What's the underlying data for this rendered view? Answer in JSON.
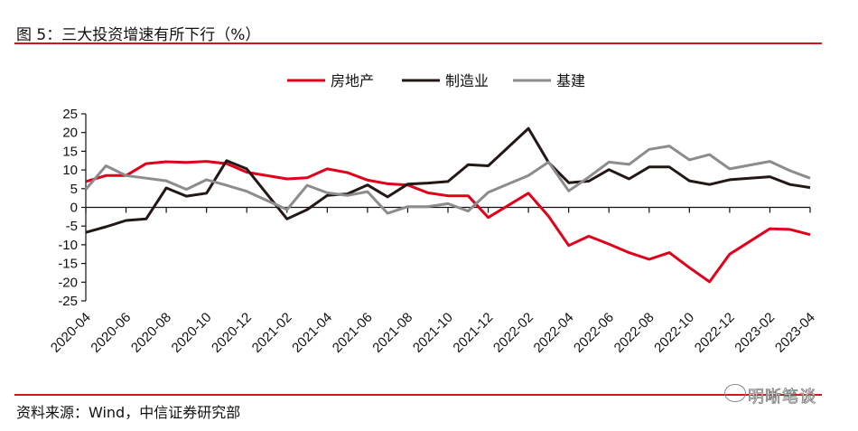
{
  "title": "图 5：三大投资增速有所下行（%）",
  "source": "资料来源：Wind，中信证券研究部",
  "watermark": "明晰笔谈",
  "chart_data": {
    "type": "line",
    "title": "三大投资增速有所下行（%）",
    "xlabel": "",
    "ylabel": "%",
    "ylim": [
      -25,
      25
    ],
    "yticks": [
      "25",
      "20",
      "15",
      "10",
      "5",
      "0",
      "-5",
      "-10",
      "-15",
      "-20",
      "-25"
    ],
    "xtick_labels": [
      "2020-04",
      "2020-06",
      "2020-08",
      "2020-10",
      "2020-12",
      "2021-02",
      "2021-04",
      "2021-06",
      "2021-08",
      "2021-10",
      "2021-12",
      "2022-02",
      "2022-04",
      "2022-06",
      "2022-08",
      "2022-10",
      "2022-12",
      "2023-02",
      "2023-04"
    ],
    "legend_position": "top-center",
    "x": [
      "2020-04",
      "2020-05",
      "2020-06",
      "2020-07",
      "2020-08",
      "2020-09",
      "2020-10",
      "2020-11",
      "2020-12",
      "2021-02",
      "2021-03",
      "2021-04",
      "2021-05",
      "2021-06",
      "2021-07",
      "2021-08",
      "2021-09",
      "2021-10",
      "2021-11",
      "2021-12",
      "2022-02",
      "2022-03",
      "2022-04",
      "2022-05",
      "2022-06",
      "2022-07",
      "2022-08",
      "2022-09",
      "2022-10",
      "2022-11",
      "2022-12",
      "2023-02",
      "2023-03",
      "2023-04"
    ],
    "series": [
      {
        "name": "房地产",
        "color": "#e0001a",
        "values": [
          6.9,
          8.5,
          8.5,
          11.7,
          12.2,
          12.0,
          12.3,
          11.7,
          9.4,
          7.6,
          7.9,
          10.3,
          9.3,
          7.3,
          6.3,
          6.0,
          3.9,
          3.1,
          3.1,
          -2.7,
          3.8,
          -2.4,
          -10.2,
          -7.7,
          -9.8,
          -12.1,
          -13.9,
          -12.1,
          -16.1,
          -19.9,
          -12.5,
          -5.7,
          -5.9,
          -7.3
        ]
      },
      {
        "name": "制造业",
        "color": "#231815",
        "values": [
          -6.7,
          -5.2,
          -3.5,
          -3.1,
          5.2,
          3.0,
          3.8,
          12.5,
          10.3,
          -3.1,
          -0.6,
          3.2,
          3.6,
          6.0,
          2.8,
          6.2,
          6.5,
          6.9,
          11.4,
          11.1,
          21.1,
          12.0,
          6.6,
          7.0,
          10.1,
          7.6,
          10.8,
          10.8,
          7.1,
          6.1,
          7.4,
          8.2,
          6.1,
          5.3
        ]
      },
      {
        "name": "基建",
        "color": "#8c8c8c",
        "values": [
          4.8,
          11.1,
          8.5,
          7.8,
          7.1,
          4.8,
          7.4,
          5.9,
          4.3,
          -0.6,
          5.9,
          3.9,
          3.2,
          4.2,
          -1.6,
          0.2,
          0.2,
          1.0,
          -1.0,
          4.0,
          8.5,
          12.1,
          4.4,
          8.1,
          12.1,
          11.5,
          15.5,
          16.4,
          12.7,
          14.1,
          10.3,
          12.3,
          9.8,
          7.8
        ]
      }
    ]
  }
}
